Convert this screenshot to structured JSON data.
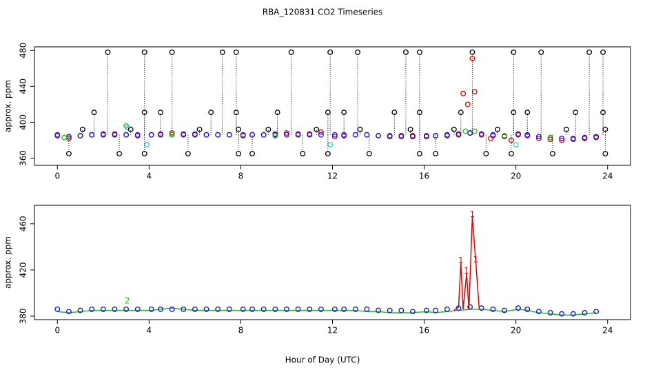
{
  "chart_data": [
    {
      "type": "scatter",
      "title": "RBA_120831  CO2 Timeseries",
      "ylabel": "approx. ppm",
      "xlim": [
        -1,
        25
      ],
      "ylim": [
        352,
        484
      ],
      "xticks": [
        0,
        4,
        8,
        12,
        16,
        20,
        24
      ],
      "yticks": [
        360,
        400,
        440,
        480
      ],
      "series": [
        {
          "color": "#e00000",
          "marker": "circle",
          "x": [
            0,
            0.5,
            1,
            1.5,
            2,
            2.5,
            3,
            3.5,
            4.1,
            4.5,
            5,
            5.5,
            6,
            6.5,
            7,
            7.5,
            8.1,
            8.5,
            9,
            9.5,
            10,
            10.5,
            11,
            11.5,
            12.1,
            12.5,
            13,
            13.5,
            14,
            14.5,
            15,
            15.5,
            16.1,
            16.5,
            17,
            17.5,
            18,
            18.5,
            19,
            19.5,
            20.1,
            20.5,
            21,
            21.5,
            22,
            22.5,
            23,
            23.5,
            17.7,
            17.9,
            18.1,
            18.2,
            19.8,
            18.9
          ],
          "values": [
            385,
            382,
            385,
            386,
            387,
            387,
            386,
            385,
            386,
            387,
            388,
            387,
            387,
            386,
            386,
            386,
            385,
            386,
            386,
            387,
            388,
            387,
            387,
            389,
            384,
            385,
            386,
            386,
            385,
            384,
            384,
            385,
            384,
            385,
            385,
            386,
            388,
            386,
            385,
            384,
            386,
            385,
            382,
            381,
            380,
            381,
            382,
            383,
            432,
            420,
            471,
            434,
            380,
            382
          ]
        },
        {
          "color": "#1010ee",
          "marker": "circle",
          "x": [
            0,
            0.5,
            1,
            1.5,
            2,
            2.5,
            3,
            3.5,
            4.1,
            4.5,
            5,
            5.5,
            6,
            6.5,
            7,
            7.5,
            8.1,
            8.5,
            9,
            9.5,
            10,
            10.5,
            11,
            11.5,
            12.1,
            12.5,
            13,
            13.5,
            14,
            14.5,
            15,
            15.5,
            16.1,
            16.5,
            17,
            17.5,
            18,
            18.5,
            19,
            19.5,
            20.1,
            20.5,
            21,
            21.5,
            22,
            22.5,
            23,
            23.5
          ],
          "values": [
            386,
            384,
            385,
            386,
            386,
            386,
            386,
            386,
            386,
            386,
            386,
            386,
            386,
            386,
            386,
            386,
            386,
            386,
            386,
            386,
            386,
            386,
            386,
            386,
            386,
            386,
            386,
            386,
            385,
            385,
            385,
            384,
            385,
            385,
            386,
            387,
            388,
            387,
            386,
            385,
            387,
            386,
            384,
            383,
            382,
            382,
            383,
            384
          ]
        },
        {
          "color": "#20c020",
          "marker": "circle",
          "x": [
            0.3,
            3,
            5,
            9.5,
            17.8,
            18.2,
            19.5,
            21.5
          ],
          "values": [
            383,
            396,
            386,
            385,
            390,
            390,
            385,
            383
          ]
        },
        {
          "color": "#20d0d0",
          "marker": "circle",
          "x": [
            3.9,
            11.9,
            20,
            3.05
          ],
          "values": [
            375,
            375,
            375,
            394
          ]
        },
        {
          "color": "#000000",
          "marker": "circle",
          "stems": true,
          "x": [
            2.2,
            3.8,
            5,
            7.2,
            7.8,
            10.2,
            11.9,
            13.1,
            15.2,
            15.8,
            18.1,
            19.9,
            21.1,
            23.2,
            23.8,
            1.6,
            3.8,
            4.5,
            6.7,
            7.8,
            9.6,
            11.8,
            12.5,
            14.7,
            15.8,
            17.6,
            19.9,
            20.5,
            22.6,
            23.8,
            0.5,
            2.7,
            3.8,
            5.7,
            7.9,
            8.5,
            10.7,
            11.8,
            13.6,
            15.8,
            16.5,
            18.7,
            19.8,
            21.6,
            23.9,
            1.1,
            3.2,
            6.2,
            7.9,
            9.2,
            11.3,
            13.2,
            15.4,
            17.3,
            19.2,
            22.2,
            23.9
          ],
          "values": [
            478,
            478,
            478,
            478,
            478,
            478,
            478,
            478,
            478,
            478,
            478,
            478,
            478,
            478,
            478,
            411,
            411,
            411,
            411,
            411,
            411,
            411,
            411,
            411,
            411,
            411,
            411,
            411,
            411,
            411,
            365,
            365,
            365,
            365,
            365,
            365,
            365,
            365,
            365,
            365,
            365,
            365,
            365,
            365,
            365,
            392,
            392,
            392,
            392,
            392,
            392,
            392,
            392,
            392,
            392,
            392,
            392
          ]
        }
      ]
    },
    {
      "type": "scatter",
      "ylabel": "approx. ppm",
      "xlabel": "Hour of Day (UTC)",
      "xlim": [
        -1,
        25
      ],
      "ylim": [
        377,
        476
      ],
      "xticks": [
        0,
        4,
        8,
        12,
        16,
        20,
        24
      ],
      "yticks": [
        380,
        420,
        460
      ],
      "series": [
        {
          "color": "#20c020",
          "marker": "line",
          "x": [
            0,
            0.5,
            1,
            1.5,
            2,
            2.5,
            3,
            3.5,
            4.1,
            4.5,
            5,
            5.5,
            6,
            6.5,
            7,
            7.5,
            8.1,
            8.5,
            9,
            9.5,
            10,
            10.5,
            11,
            11.5,
            12.1,
            12.5,
            13,
            13.5,
            14,
            14.5,
            15,
            15.5,
            16.1,
            16.5,
            17,
            17.5,
            18,
            18.5,
            19,
            19.5,
            20.1,
            20.5,
            21,
            21.5,
            22,
            22.5,
            23,
            23.5
          ],
          "values": [
            384,
            383,
            384,
            385,
            385,
            385,
            385,
            385,
            385,
            386,
            387,
            386,
            385,
            385,
            385,
            385,
            385,
            385,
            385,
            385,
            385,
            385,
            385,
            385,
            385,
            385,
            385,
            384,
            384,
            383,
            383,
            383,
            384,
            383,
            384,
            385,
            386,
            386,
            385,
            384,
            386,
            385,
            383,
            382,
            381,
            381,
            382,
            383
          ]
        },
        {
          "color": "#1010ee",
          "marker": "circle",
          "x": [
            0,
            0.5,
            1,
            1.5,
            2,
            2.5,
            3,
            3.5,
            4.1,
            4.5,
            5,
            5.5,
            6,
            6.5,
            7,
            7.5,
            8.1,
            8.5,
            9,
            9.5,
            10,
            10.5,
            11,
            11.5,
            12.1,
            12.5,
            13,
            13.5,
            14,
            14.5,
            15,
            15.5,
            16.1,
            16.5,
            17,
            17.5,
            18,
            18.5,
            19,
            19.5,
            20.1,
            20.5,
            21,
            21.5,
            22,
            22.5,
            23,
            23.5
          ],
          "values": [
            386,
            384,
            385,
            386,
            386,
            386,
            386,
            386,
            386,
            386,
            386,
            386,
            386,
            386,
            386,
            386,
            386,
            386,
            386,
            386,
            386,
            386,
            386,
            386,
            386,
            386,
            386,
            386,
            385,
            385,
            385,
            384,
            385,
            385,
            386,
            387,
            388,
            387,
            386,
            385,
            387,
            386,
            384,
            383,
            382,
            382,
            383,
            384
          ]
        },
        {
          "color": "#e00000",
          "marker": "line",
          "x": [
            17.3,
            17.5,
            17.6,
            17.7,
            17.85,
            17.95,
            18.1,
            18.25,
            18.4
          ],
          "values": [
            385,
            388,
            426,
            386,
            417,
            386,
            466,
            427,
            386
          ]
        },
        {
          "color": "#e00000",
          "marker": "1",
          "x": [
            17.6,
            17.85,
            18.1,
            18.25
          ],
          "values": [
            428,
            419,
            468,
            429
          ]
        },
        {
          "color": "#20c020",
          "marker": "2",
          "x": [
            3.05
          ],
          "values": [
            393
          ]
        }
      ]
    }
  ]
}
